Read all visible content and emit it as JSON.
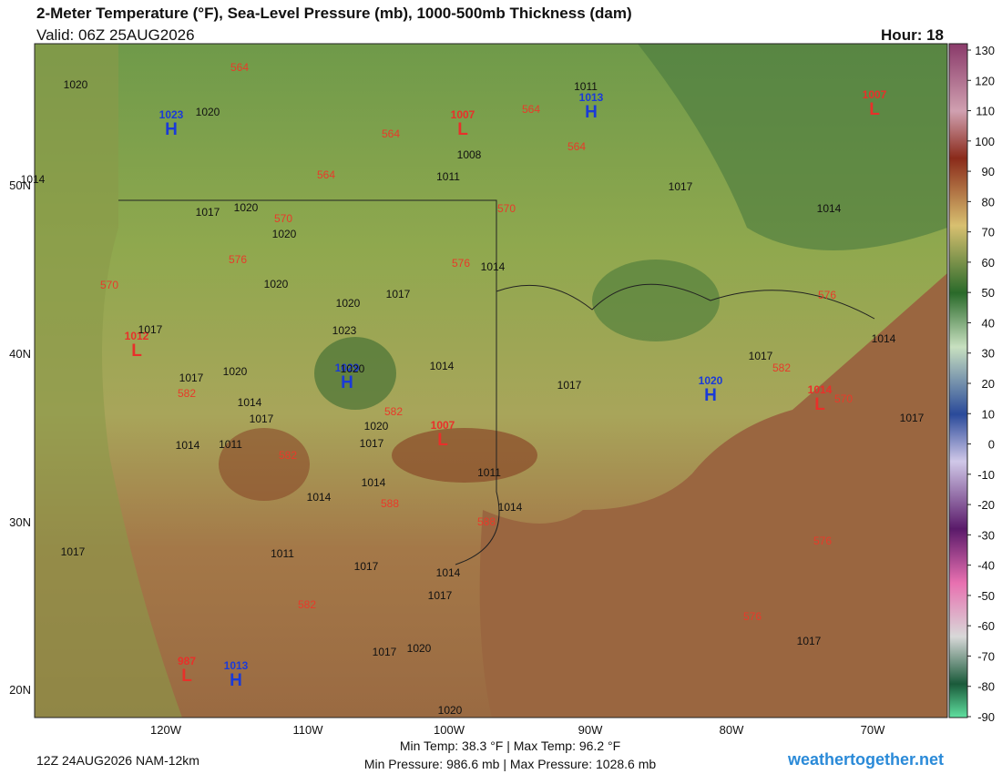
{
  "header": {
    "title": "2-Meter Temperature (°F), Sea-Level Pressure (mb), 1000-500mb Thickness (dam)",
    "valid": "Valid: 06Z 25AUG2026",
    "hour": "Hour: 18"
  },
  "map": {
    "lat_labels": [
      "50N",
      "40N",
      "30N",
      "20N"
    ],
    "lon_labels": [
      "120W",
      "110W",
      "100W",
      "90W",
      "80W",
      "70W"
    ],
    "centers": [
      {
        "letter": "H",
        "value": 1023
      },
      {
        "letter": "L",
        "value": 1007
      },
      {
        "letter": "H",
        "value": 1013
      },
      {
        "letter": "L",
        "value": 1007
      },
      {
        "letter": "L",
        "value": 1012
      },
      {
        "letter": "H",
        "value": 1029
      },
      {
        "letter": "H",
        "value": 1020
      },
      {
        "letter": "L",
        "value": 1014
      },
      {
        "letter": "L",
        "value": 1007
      },
      {
        "letter": "L",
        "value": 987
      },
      {
        "letter": "H",
        "value": 1013
      }
    ],
    "isobar_labels": [
      1020,
      1020,
      1017,
      1020,
      1020,
      1020,
      1020,
      1023,
      1017,
      1017,
      1017,
      1020,
      1020,
      1014,
      1017,
      1020,
      1017,
      1014,
      1011,
      1014,
      1014,
      1014,
      1014,
      1017,
      1011,
      1014,
      1011,
      1017,
      1014,
      1017,
      1020,
      1017,
      1020,
      1017,
      1011,
      1011,
      1008,
      1017,
      1014,
      1014,
      1017,
      1017,
      1017,
      1014
    ],
    "thickness_labels": [
      564,
      564,
      564,
      564,
      564,
      570,
      570,
      576,
      576,
      570,
      576,
      582,
      582,
      582,
      588,
      588,
      576,
      582,
      576,
      570,
      582
    ]
  },
  "colorbar": {
    "ticks": [
      130,
      120,
      110,
      100,
      90,
      80,
      70,
      60,
      50,
      40,
      30,
      20,
      10,
      0,
      -10,
      -20,
      -30,
      -40,
      -50,
      -60,
      -70,
      -80,
      -90
    ]
  },
  "footer": {
    "run": "12Z 24AUG2026 NAM-12km",
    "temp_range": "Min Temp:  38.3 °F | Max Temp:  96.2 °F",
    "pressure_range": "Min Pressure: 986.6 mb | Max Pressure: 1028.6 mb",
    "site": "weathertogether.net"
  }
}
